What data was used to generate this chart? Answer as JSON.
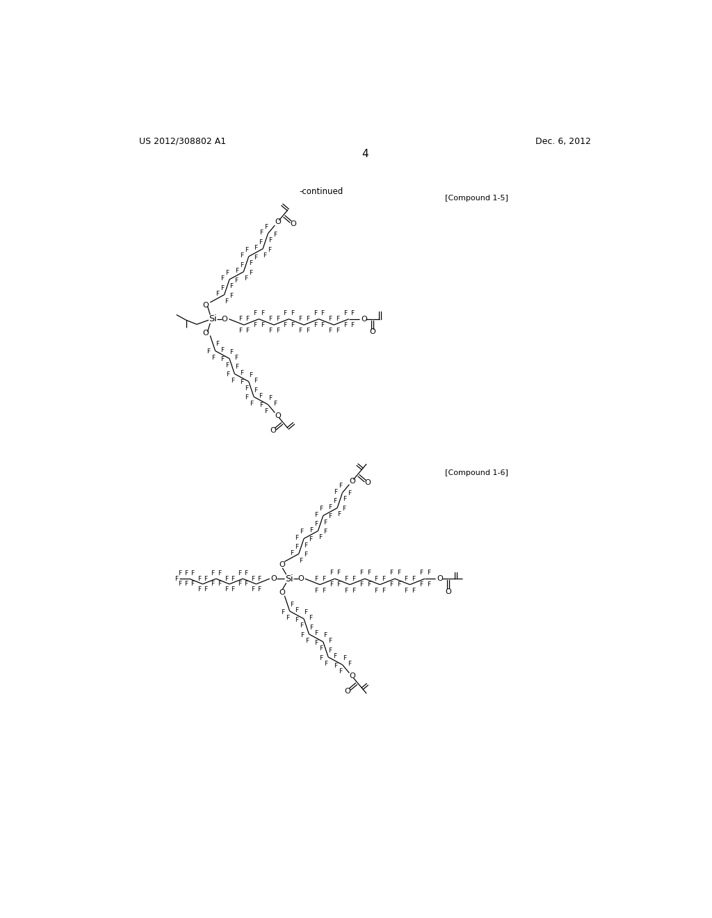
{
  "title_left": "US 2012/308802 A1",
  "title_right": "Dec. 6, 2012",
  "page_number": "4",
  "continued_label": "-continued",
  "compound1_5_label": "[Compound 1-5]",
  "compound1_6_label": "[Compound 1-6]",
  "background_color": "#ffffff",
  "text_color": "#000000",
  "line_color": "#000000"
}
